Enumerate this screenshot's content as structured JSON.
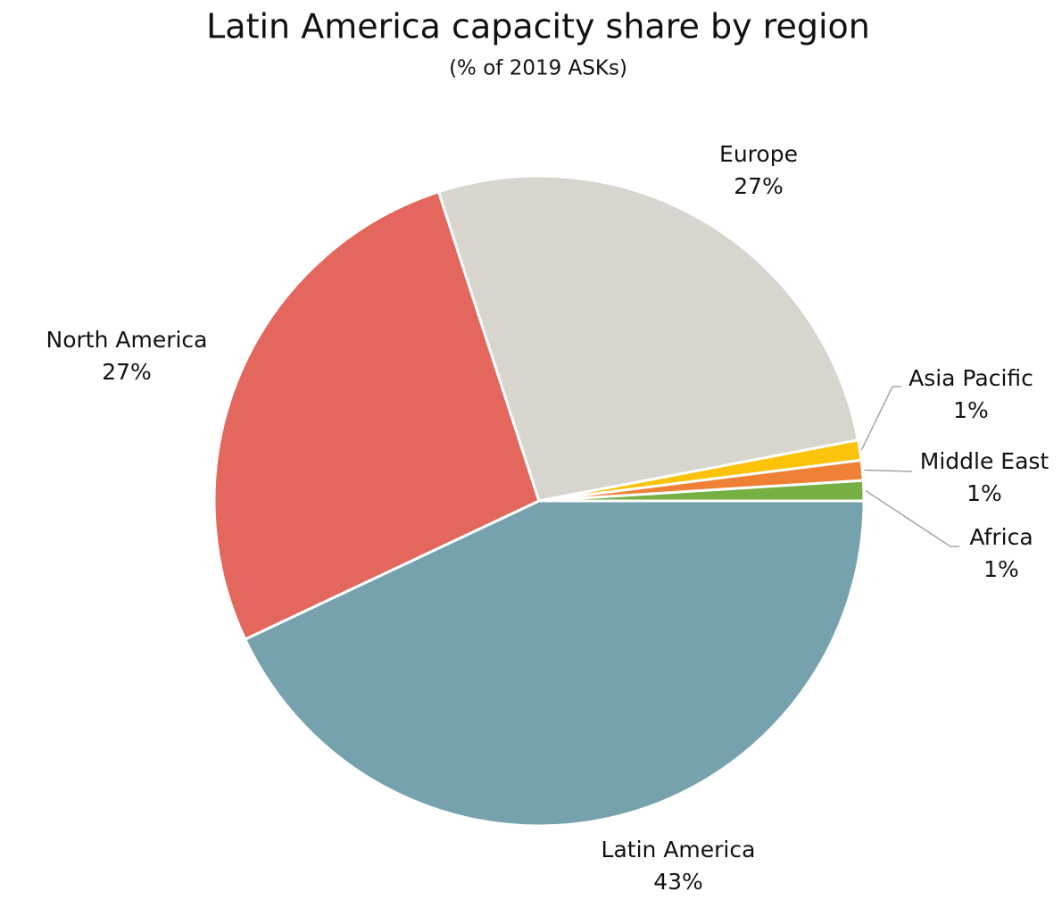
{
  "chart_data": {
    "type": "pie",
    "title": "Latin America capacity share by region",
    "subtitle": "(% of 2019 ASKs)",
    "categories": [
      "Latin America",
      "North America",
      "Europe",
      "Asia Pacific",
      "Middle East",
      "Africa"
    ],
    "values": [
      43,
      27,
      27,
      1,
      1,
      1
    ],
    "value_labels": [
      "43%",
      "27%",
      "27%",
      "1%",
      "1%",
      "1%"
    ],
    "colors": [
      "#76a2ae",
      "#e3675d",
      "#d8d4ce",
      "#fcc30b",
      "#ef8136",
      "#76b043"
    ]
  }
}
